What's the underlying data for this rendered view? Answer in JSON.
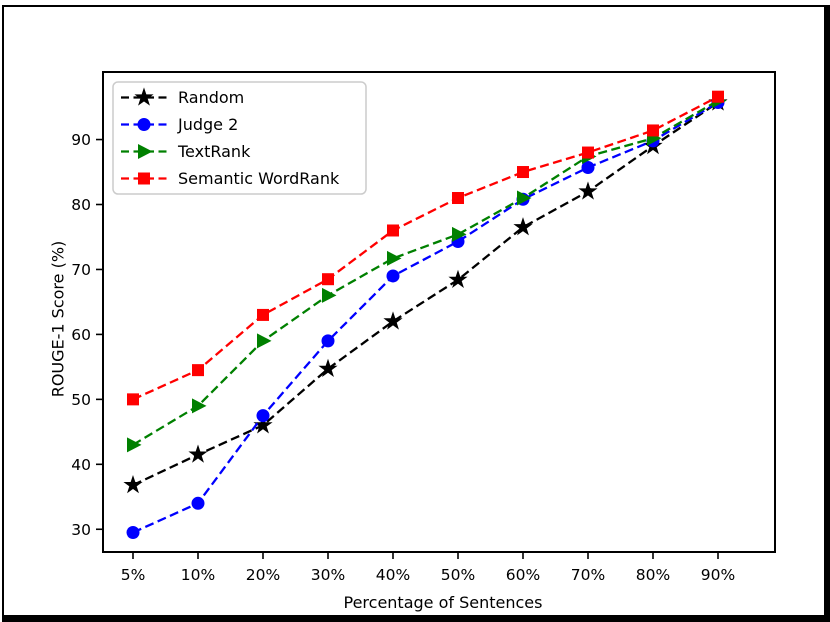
{
  "chart_data": {
    "type": "line",
    "title": "",
    "xlabel": "Percentage of Sentences",
    "ylabel": "ROUGE-1 Score (%)",
    "categories": [
      "5%",
      "10%",
      "20%",
      "30%",
      "40%",
      "50%",
      "60%",
      "70%",
      "80%",
      "90%"
    ],
    "y_ticks": [
      30,
      40,
      50,
      60,
      70,
      80,
      90
    ],
    "ylim": [
      26.5,
      100.4
    ],
    "grid": false,
    "legend_position": "upper-left",
    "line_style": "dashed",
    "series": [
      {
        "name": "Random",
        "color": "#000000",
        "marker": "star",
        "values": [
          36.8,
          41.5,
          46.0,
          54.7,
          62.0,
          68.4,
          76.5,
          82.0,
          89.0,
          95.7
        ]
      },
      {
        "name": "Judge 2",
        "color": "#0000ff",
        "marker": "circle",
        "values": [
          29.5,
          34.0,
          47.5,
          59.0,
          69.0,
          74.3,
          80.8,
          85.7,
          89.8,
          95.7
        ]
      },
      {
        "name": "TextRank",
        "color": "#008000",
        "marker": "triangle-right",
        "values": [
          43.0,
          49.0,
          59.0,
          66.0,
          71.7,
          75.4,
          81.0,
          87.4,
          90.2,
          96.0
        ]
      },
      {
        "name": "Semantic WordRank",
        "color": "#ff0000",
        "marker": "square",
        "values": [
          50.0,
          54.5,
          63.0,
          68.5,
          76.0,
          81.0,
          85.0,
          88.0,
          91.4,
          96.6
        ]
      }
    ]
  }
}
